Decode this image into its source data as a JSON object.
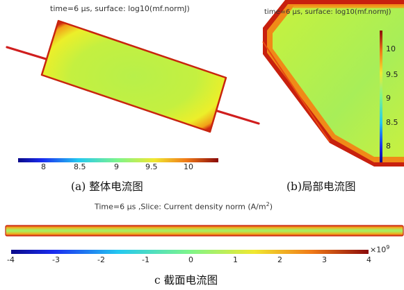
{
  "panel_a": {
    "title": "time=6 µs, surface: log10(mf.normJ)",
    "colorbar_ticks": [
      "8",
      "8.5",
      "9",
      "9.5",
      "10"
    ],
    "caption": "(a)  整体电流图"
  },
  "panel_b": {
    "title": "time=6 µs, surface: log10(mf.normJ)",
    "colorbar_ticks": [
      "10",
      "9.5",
      "9",
      "8.5",
      "8"
    ],
    "caption": "(b)局部电流图"
  },
  "panel_c": {
    "title_main": "Time=6 µs ,Slice: Current density norm (A/m",
    "title_sup": "2",
    "title_end": ")",
    "colorbar_ticks": [
      "-4",
      "-3",
      "-2",
      "-1",
      "0",
      "1",
      "2",
      "3",
      "4"
    ],
    "scale_exponent_base": "×10",
    "scale_exponent": "9",
    "caption": "c  截面电流图"
  },
  "colors": {
    "jet_low": "#0a0a8a",
    "jet_mid": "#7ef58a",
    "jet_high": "#8a0a0a",
    "surface_fill": "#b8f04a",
    "wire": "#d01e1e"
  }
}
